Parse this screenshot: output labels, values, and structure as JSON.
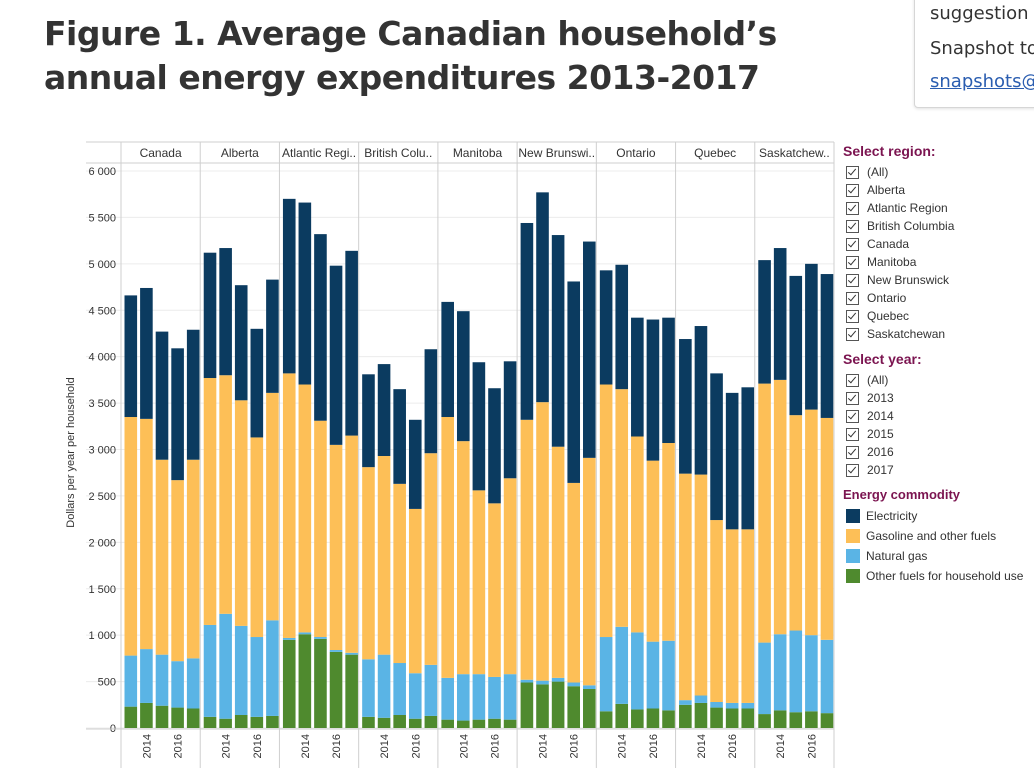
{
  "page": {
    "title": "Figure 1. Average Canadian household’s annual energy expenditures 2013-2017",
    "side_box": {
      "line1": "suggestion",
      "line2": "Snapshot to",
      "line3": "snapshots@"
    }
  },
  "filters": {
    "region_title": "Select region:",
    "regions": [
      "(All)",
      "Alberta",
      "Atlantic Region",
      "British Columbia",
      "Canada",
      "Manitoba",
      "New Brunswick",
      "Ontario",
      "Quebec",
      "Saskatchewan"
    ],
    "year_title": "Select year:",
    "years": [
      "(All)",
      "2013",
      "2014",
      "2015",
      "2016",
      "2017"
    ]
  },
  "legend": {
    "title": "Energy commodity",
    "items": [
      {
        "label": "Electricity",
        "color": "#0b3b60"
      },
      {
        "label": "Gasoline and other fuels",
        "color": "#fdbf57"
      },
      {
        "label": "Natural gas",
        "color": "#5ab4e5"
      },
      {
        "label": "Other fuels for household use",
        "color": "#4f8a2e"
      }
    ]
  },
  "chart_data": {
    "type": "bar",
    "stacked": true,
    "ylabel": "Dollars per year per household",
    "ylim": [
      0,
      6000
    ],
    "yticks": [
      0,
      500,
      1000,
      1500,
      2000,
      2500,
      3000,
      3500,
      4000,
      4500,
      5000,
      5500,
      6000
    ],
    "ytick_labels": [
      "0",
      "500",
      "1 000",
      "1 500",
      "2 000",
      "2 500",
      "3 000",
      "3 500",
      "4 000",
      "4 500",
      "5 000",
      "5 500",
      "6 000"
    ],
    "x": [
      2013,
      2014,
      2015,
      2016,
      2017
    ],
    "xtick_labels": [
      "2014",
      "2016"
    ],
    "panel_labels": [
      "Canada",
      "Alberta",
      "Atlantic Regi..",
      "British Colu..",
      "Manitoba",
      "New Brunswi..",
      "Ontario",
      "Quebec",
      "Saskatchew.."
    ],
    "series_order": [
      "Other fuels for household use",
      "Natural gas",
      "Gasoline and other fuels",
      "Electricity"
    ],
    "panels": [
      {
        "region": "Canada",
        "values": {
          "Other fuels for household use": [
            230,
            270,
            240,
            220,
            210
          ],
          "Natural gas": [
            550,
            580,
            550,
            500,
            540
          ],
          "Gasoline and other fuels": [
            2570,
            2480,
            2100,
            1950,
            2140
          ],
          "Electricity": [
            1310,
            1410,
            1380,
            1420,
            1400
          ]
        }
      },
      {
        "region": "Alberta",
        "values": {
          "Other fuels for household use": [
            120,
            100,
            140,
            120,
            130
          ],
          "Natural gas": [
            990,
            1130,
            960,
            860,
            1030
          ],
          "Gasoline and other fuels": [
            2660,
            2570,
            2430,
            2150,
            2450
          ],
          "Electricity": [
            1350,
            1370,
            1240,
            1170,
            1220
          ]
        }
      },
      {
        "region": "Atlantic Region",
        "values": {
          "Other fuels for household use": [
            950,
            1010,
            960,
            820,
            790
          ],
          "Natural gas": [
            20,
            20,
            20,
            20,
            20
          ],
          "Gasoline and other fuels": [
            2850,
            2670,
            2330,
            2210,
            2340
          ],
          "Electricity": [
            1880,
            1960,
            2010,
            1930,
            1990
          ]
        }
      },
      {
        "region": "British Columbia",
        "values": {
          "Other fuels for household use": [
            120,
            110,
            140,
            100,
            130
          ],
          "Natural gas": [
            620,
            680,
            560,
            490,
            550
          ],
          "Gasoline and other fuels": [
            2070,
            2140,
            1930,
            1770,
            2280
          ],
          "Electricity": [
            1000,
            990,
            1020,
            960,
            1120
          ]
        }
      },
      {
        "region": "Manitoba",
        "values": {
          "Other fuels for household use": [
            90,
            80,
            90,
            100,
            90
          ],
          "Natural gas": [
            450,
            500,
            490,
            450,
            490
          ],
          "Gasoline and other fuels": [
            2810,
            2510,
            1980,
            1870,
            2110
          ],
          "Electricity": [
            1240,
            1400,
            1380,
            1240,
            1260
          ]
        }
      },
      {
        "region": "New Brunswick",
        "values": {
          "Other fuels for household use": [
            490,
            470,
            500,
            450,
            420
          ],
          "Natural gas": [
            30,
            40,
            40,
            40,
            40
          ],
          "Gasoline and other fuels": [
            2800,
            3000,
            2490,
            2150,
            2450
          ],
          "Electricity": [
            2120,
            2260,
            2280,
            2170,
            2330
          ]
        }
      },
      {
        "region": "Ontario",
        "values": {
          "Other fuels for household use": [
            180,
            260,
            200,
            210,
            190
          ],
          "Natural gas": [
            800,
            830,
            830,
            720,
            750
          ],
          "Gasoline and other fuels": [
            2720,
            2560,
            2110,
            1950,
            2130
          ],
          "Electricity": [
            1230,
            1340,
            1280,
            1520,
            1350
          ]
        }
      },
      {
        "region": "Quebec",
        "values": {
          "Other fuels for household use": [
            250,
            270,
            220,
            210,
            210
          ],
          "Natural gas": [
            50,
            80,
            60,
            60,
            60
          ],
          "Gasoline and other fuels": [
            2440,
            2380,
            1960,
            1870,
            1870
          ],
          "Electricity": [
            1450,
            1600,
            1580,
            1470,
            1530
          ]
        }
      },
      {
        "region": "Saskatchewan",
        "values": {
          "Other fuels for household use": [
            150,
            190,
            170,
            180,
            160
          ],
          "Natural gas": [
            770,
            820,
            880,
            820,
            790
          ],
          "Gasoline and other fuels": [
            2790,
            2740,
            2320,
            2430,
            2390
          ],
          "Electricity": [
            1330,
            1420,
            1500,
            1570,
            1550
          ]
        }
      }
    ]
  }
}
